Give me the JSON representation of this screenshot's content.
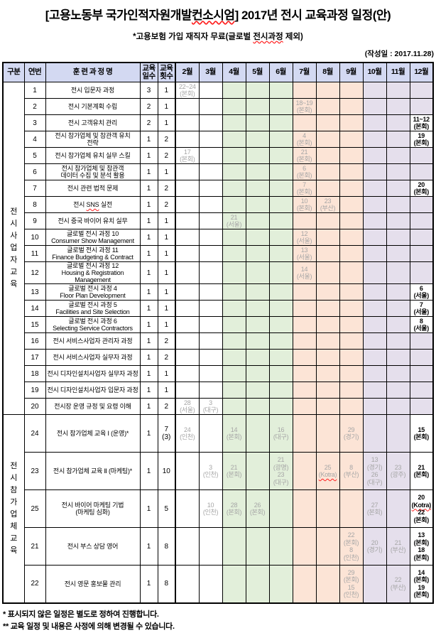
{
  "page": {
    "title_lines": [
      [
        "[고용노동부 국가인적자원개발",
        {
          "t": "컨소시엄",
          "wavy": true
        },
        "]  2017년 전시 교육과정 일정(안)"
      ]
    ],
    "subtitle_lines": [
      [
        "*고용보험 가입 재직자 무료(글로벌 ",
        {
          "t": "전시과정",
          "wavy": true
        },
        " 제외)"
      ]
    ],
    "date_note": "(작성일 : 2017.11.28)",
    "footnotes": [
      "* 표시되지 않은 일정은 별도로 정하여 진행합니다.",
      "** 교육 일정 및 내용은 사정에 의해 변경될 수 있습니다."
    ]
  },
  "table": {
    "headers": {
      "gubun": "구분",
      "no": "연번",
      "course": "훈 련 과 정 명",
      "days_lines": [
        "교육",
        "일수"
      ],
      "count_lines": [
        "교육",
        "횟수"
      ],
      "months": [
        "2월",
        "3월",
        "4월",
        "5월",
        "6월",
        "7월",
        "8월",
        "9월",
        "10월",
        "11월",
        "12월"
      ]
    },
    "month_colors": {
      "header": "#d3d9f2",
      "white": "#ffffff",
      "green": "#e2efda",
      "orange": "#fce4d6",
      "purple": "#e5dfec"
    },
    "text_colors": {
      "scheduled_gray": "#a6a6a6",
      "confirmed_black": "#000000"
    },
    "sections": [
      {
        "label": "전시사업자교육",
        "rows": [
          {
            "no": "1",
            "course": [
              "전시 입문자 과정"
            ],
            "days": "3",
            "count": [
              "1"
            ],
            "cells": {
              "0": {
                "lines": [
                  "22~24",
                  "(본회)"
                ]
              }
            }
          },
          {
            "no": "2",
            "course": [
              "전시 기본계획 수립"
            ],
            "days": "2",
            "count": [
              "1"
            ],
            "cells": {
              "5": {
                "lines": [
                  "18~19",
                  "(본회)"
                ]
              }
            }
          },
          {
            "no": "3",
            "course": [
              "전시 고객유치 관리"
            ],
            "days": "2",
            "count": [
              "1"
            ],
            "cells": {
              "10": {
                "lines": [
                  "11~12",
                  "(본회)"
                ],
                "confirmed": true
              }
            }
          },
          {
            "no": "4",
            "course": [
              "전시 참가업체 및 참관객 유치",
              "전략"
            ],
            "days": "1",
            "count": [
              "2"
            ],
            "cells": {
              "5": {
                "lines": [
                  "4",
                  "(본회)"
                ]
              },
              "10": {
                "lines": [
                  "19",
                  "(본회)"
                ],
                "confirmed": true
              }
            }
          },
          {
            "no": "5",
            "course": [
              "전시 참가업체 유치 실무 스킬"
            ],
            "days": "1",
            "count": [
              "2"
            ],
            "cells": {
              "0": {
                "lines": [
                  "17",
                  "(본회)"
                ]
              },
              "5": {
                "lines": [
                  "21",
                  "(본회)"
                ]
              }
            }
          },
          {
            "no": "6",
            "course": [
              "전시 참가업체 및 참관객",
              "데이터 수집 및 분석 활용"
            ],
            "days": "1",
            "count": [
              "1"
            ],
            "cells": {
              "5": {
                "lines": [
                  "6",
                  "(본회)"
                ]
              }
            }
          },
          {
            "no": "7",
            "course": [
              "전시 관련 법적 문제"
            ],
            "days": "1",
            "count": [
              "2"
            ],
            "cells": {
              "5": {
                "lines": [
                  "7",
                  "(본회)"
                ]
              },
              "10": {
                "lines": [
                  "20",
                  "(본회)"
                ],
                "confirmed": true
              }
            }
          },
          {
            "no": "8",
            "course": [
              [
                "전시 ",
                {
                  "t": "SNS",
                  "wavy": true
                },
                " 실전"
              ]
            ],
            "days": "1",
            "count": [
              "2"
            ],
            "cells": {
              "5": {
                "lines": [
                  "10",
                  "(본회)"
                ]
              },
              "6": {
                "lines": [
                  "23",
                  "(부산)"
                ]
              }
            }
          },
          {
            "no": "9",
            "course": [
              "전시 중국 바이어 유치 실무"
            ],
            "days": "1",
            "count": [
              "1"
            ],
            "cells": {
              "2": {
                "lines": [
                  "21",
                  "(서울)"
                ]
              }
            }
          },
          {
            "no": "10",
            "course": [
              "글로벌 전시 과정 10",
              "Consumer Show Management"
            ],
            "days": "1",
            "count": [
              "1"
            ],
            "cells": {
              "5": {
                "lines": [
                  "12",
                  "(서울)"
                ]
              }
            }
          },
          {
            "no": "11",
            "course": [
              "글로벌 전시 과정 11",
              "Finance Budgeting & Contract"
            ],
            "days": "1",
            "count": [
              "1"
            ],
            "cells": {
              "5": {
                "lines": [
                  "13",
                  "(서울)"
                ]
              }
            }
          },
          {
            "no": "12",
            "course": [
              "글로벌 전시 과정 12",
              "Housing & Registration",
              "Management"
            ],
            "days": "1",
            "count": [
              "1"
            ],
            "cells": {
              "5": {
                "lines": [
                  "14",
                  "(서울)"
                ]
              }
            }
          },
          {
            "no": "13",
            "course": [
              "글로벌 전시 과정 4",
              "Floor Plan Development"
            ],
            "days": "1",
            "count": [
              "1"
            ],
            "cells": {
              "10": {
                "lines": [
                  "6",
                  "(서울)"
                ],
                "confirmed": true
              }
            }
          },
          {
            "no": "14",
            "course": [
              "글로벌 전시 과정 5",
              "Facilities and Site Selection"
            ],
            "days": "1",
            "count": [
              "1"
            ],
            "cells": {
              "10": {
                "lines": [
                  "7",
                  "(서울)"
                ],
                "confirmed": true
              }
            }
          },
          {
            "no": "15",
            "course": [
              "글로벌 전시 과정 6",
              "Selecting Service Contractors"
            ],
            "days": "1",
            "count": [
              "1"
            ],
            "cells": {
              "10": {
                "lines": [
                  "8",
                  "(서울)"
                ],
                "confirmed": true
              }
            }
          },
          {
            "no": "16",
            "course": [
              "전시 서비스사업자 관리자 과정"
            ],
            "days": "1",
            "count": [
              "2"
            ],
            "cells": {}
          },
          {
            "no": "17",
            "course": [
              "전시 서비스사업자 실무자 과정"
            ],
            "days": "1",
            "count": [
              "2"
            ],
            "cells": {}
          },
          {
            "no": "18",
            "course": [
              "전시 디자인설치사업자 실무자 과정"
            ],
            "days": "1",
            "count": [
              "1"
            ],
            "cells": {}
          },
          {
            "no": "19",
            "course": [
              "전시 디자인설치사업자 입문자 과정"
            ],
            "days": "1",
            "count": [
              "1"
            ],
            "cells": {}
          },
          {
            "no": "20",
            "course": [
              "전시장 운영 규정 및 요령 이해"
            ],
            "days": "1",
            "count": [
              "2"
            ],
            "cells": {
              "0": {
                "lines": [
                  "28",
                  "(서울)"
                ]
              },
              "1": {
                "lines": [
                  "3",
                  "(대구)"
                ]
              }
            }
          }
        ]
      },
      {
        "label": "전시참가업체교육",
        "rows": [
          {
            "no": "24",
            "course": [
              "전시 참가업체 교육 Ⅰ (운영)*"
            ],
            "days": "1",
            "count": [
              "7",
              "(3)"
            ],
            "cells": {
              "0": {
                "lines": [
                  "24",
                  "(인천)"
                ]
              },
              "2": {
                "lines": [
                  "14",
                  "(본회)"
                ]
              },
              "4": {
                "lines": [
                  "16",
                  "(대구)"
                ]
              },
              "7": {
                "lines": [
                  "29",
                  "(경기)"
                ]
              },
              "10": {
                "lines": [
                  "15",
                  "(본회)"
                ],
                "confirmed": true
              }
            }
          },
          {
            "no": "23",
            "course": [
              "전시 참가업체 교육 Ⅱ (마케팅)*"
            ],
            "days": "1",
            "count": [
              "10"
            ],
            "cells": {
              "1": {
                "lines": [
                  "3",
                  "(인천)"
                ]
              },
              "2": {
                "lines": [
                  "21",
                  "(본회)"
                ]
              },
              "4": {
                "lines": [
                  "21",
                  "(광명)",
                  "23",
                  "(대구)"
                ]
              },
              "6": {
                "lines": [
                  "25",
                  {
                    "t": "(Kotra)",
                    "wavy": true
                  }
                ]
              },
              "7": {
                "lines": [
                  "8",
                  "(부산)"
                ]
              },
              "8": {
                "lines": [
                  "13",
                  "(경기)",
                  "26",
                  "(대구)"
                ]
              },
              "9": {
                "lines": [
                  "23",
                  "(광주)"
                ]
              },
              "10": {
                "lines": [
                  "21",
                  "(본회)"
                ],
                "confirmed": true
              }
            }
          },
          {
            "no": "25",
            "course": [
              "전시 바이어 마케팅 기법",
              "(마케팅 심화)"
            ],
            "days": "1",
            "count": [
              "5"
            ],
            "cells": {
              "1": {
                "lines": [
                  "10",
                  "(인천)"
                ]
              },
              "2": {
                "lines": [
                  "28",
                  "(본회)"
                ]
              },
              "3": {
                "lines": [
                  "26",
                  "(본회)"
                ]
              },
              "8": {
                "lines": [
                  "27",
                  "(본회)"
                ]
              },
              "10": {
                "lines": [
                  "20",
                  {
                    "t": "(Kotra)",
                    "wavy": true
                  },
                  "22",
                  "(본회)"
                ],
                "confirmed": true
              }
            }
          },
          {
            "no": "21",
            "course": [
              "전시 부스 상담 영어"
            ],
            "days": "1",
            "count": [
              "8"
            ],
            "cells": {
              "7": {
                "lines": [
                  "22",
                  "(본회)",
                  "8",
                  "(인천)"
                ]
              },
              "8": {
                "lines": [
                  "20",
                  "(경기)"
                ]
              },
              "9": {
                "lines": [
                  "21",
                  "(부산)"
                ]
              },
              "10": {
                "lines": [
                  "13",
                  "(본회)",
                  "18",
                  "(본회)"
                ],
                "confirmed": true
              }
            }
          },
          {
            "no": "22",
            "course": [
              "전시 영문 홍보물 관리"
            ],
            "days": "1",
            "count": [
              "8"
            ],
            "cells": {
              "7": {
                "lines": [
                  "29",
                  "(본회)",
                  "15",
                  "(인천)"
                ]
              },
              "9": {
                "lines": [
                  "22",
                  "(부산)"
                ]
              },
              "10": {
                "lines": [
                  "14",
                  "(본회)",
                  "19",
                  "(본회)"
                ],
                "confirmed": true
              }
            }
          }
        ]
      }
    ]
  }
}
